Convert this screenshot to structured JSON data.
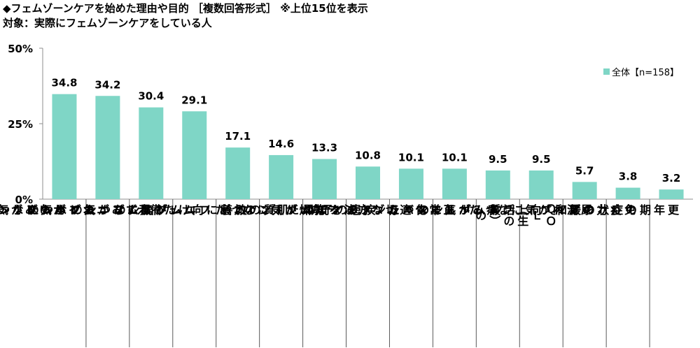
{
  "title": {
    "line1": "◆フェムゾーンケアを始めた理由や目的 ［複数回答形式］ ※上位15位を表示",
    "line2": "対象：実際にフェムゾーンケアをしている人"
  },
  "colors": {
    "bar": "#7fd6c6",
    "axis": "#8c8c8c",
    "divider": "#595959",
    "text": "#000000"
  },
  "chart_data": {
    "type": "bar",
    "ylim": [
      0,
      50
    ],
    "yticks": [
      "0%",
      "25%",
      "50%"
    ],
    "ytick_values": [
      0,
      25,
      50
    ],
    "legend": "全体【n=158】",
    "series": [
      {
        "name": "全体【n=158】",
        "values": [
          34.8,
          34.2,
          30.4,
          29.1,
          17.1,
          14.6,
          13.3,
          10.8,
          10.1,
          10.1,
          9.5,
          9.5,
          5.7,
          3.8,
          3.2
        ]
      }
    ],
    "value_labels": [
      "34.8",
      "34.2",
      "30.4",
      "29.1",
      "17.1",
      "14.6",
      "13.3",
      "10.8",
      "10.1",
      "10.1",
      "9.5",
      "9.5",
      "5.7",
      "3.8",
      "3.2"
    ],
    "categories": [
      [
        "フェムゾーンの",
        "かゆみが気になった"
      ],
      [
        "フェムゾーンの",
        "ニオイが気になった"
      ],
      [
        "フェムゾーンの",
        "黒ずみが気になった"
      ],
      [
        "フェムゾーンの",
        "ムレが気になった"
      ],
      [
        "加齢に向けた備え"
      ],
      [
        "肌質の改善"
      ],
      [
        "フェムゾーンの",
        "乾燥が気になった"
      ],
      [
        "疾患の予防"
      ],
      [
        "フェムゾーンケアの",
        "適切な方法を知った"
      ],
      [
        "ホルモンバランスの",
        "正常化"
      ],
      [
        "フェムゾーンの",
        "痛みが気になった"
      ],
      [
        "ＱＯＬ（生活の質）の",
        "向上"
      ],
      [
        "尿漏れが気になった"
      ],
      [
        "免疫力のアップ"
      ],
      [
        "更年期の症状の緩和"
      ]
    ]
  }
}
